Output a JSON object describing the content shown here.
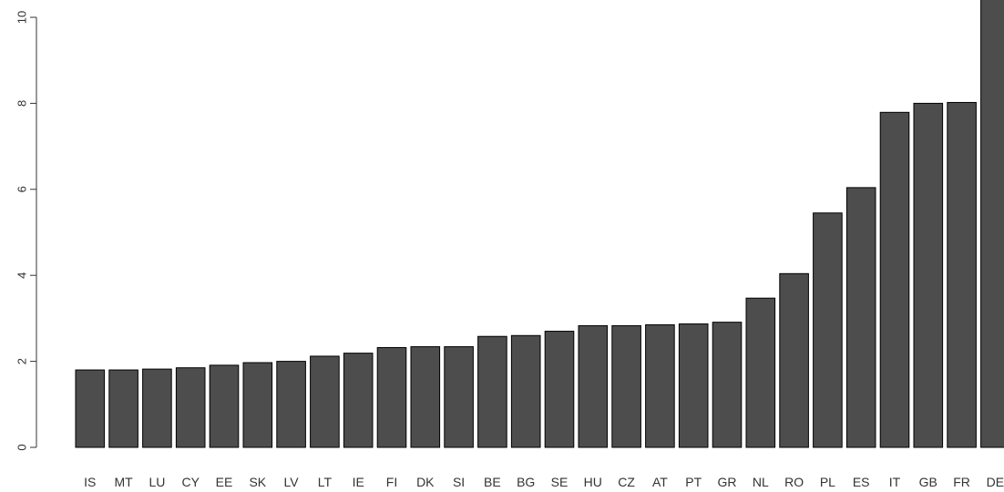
{
  "chart_data": {
    "type": "bar",
    "title": "",
    "xlabel": "",
    "ylabel": "",
    "categories": [
      "IS",
      "MT",
      "LU",
      "CY",
      "EE",
      "SK",
      "LV",
      "LT",
      "IE",
      "FI",
      "DK",
      "SI",
      "BE",
      "BG",
      "SE",
      "HU",
      "CZ",
      "AT",
      "PT",
      "GR",
      "NL",
      "RO",
      "PL",
      "ES",
      "IT",
      "GB",
      "FR",
      "DE"
    ],
    "values": [
      1.8,
      1.8,
      1.82,
      1.85,
      1.91,
      1.97,
      2.0,
      2.12,
      2.19,
      2.32,
      2.34,
      2.34,
      2.58,
      2.6,
      2.7,
      2.83,
      2.83,
      2.85,
      2.87,
      2.91,
      3.47,
      4.04,
      5.45,
      6.04,
      7.79,
      8.0,
      8.02,
      10.5
    ],
    "ylim": [
      0,
      10.5
    ],
    "yticks": [
      0,
      2,
      4,
      6,
      8,
      10
    ],
    "ytick_labels": [
      "0",
      "2",
      "4",
      "6",
      "8",
      "10"
    ],
    "grid": false,
    "colors": {
      "bar_fill": "#4d4d4d",
      "bar_stroke": "#000000",
      "axis": "#333333"
    }
  }
}
